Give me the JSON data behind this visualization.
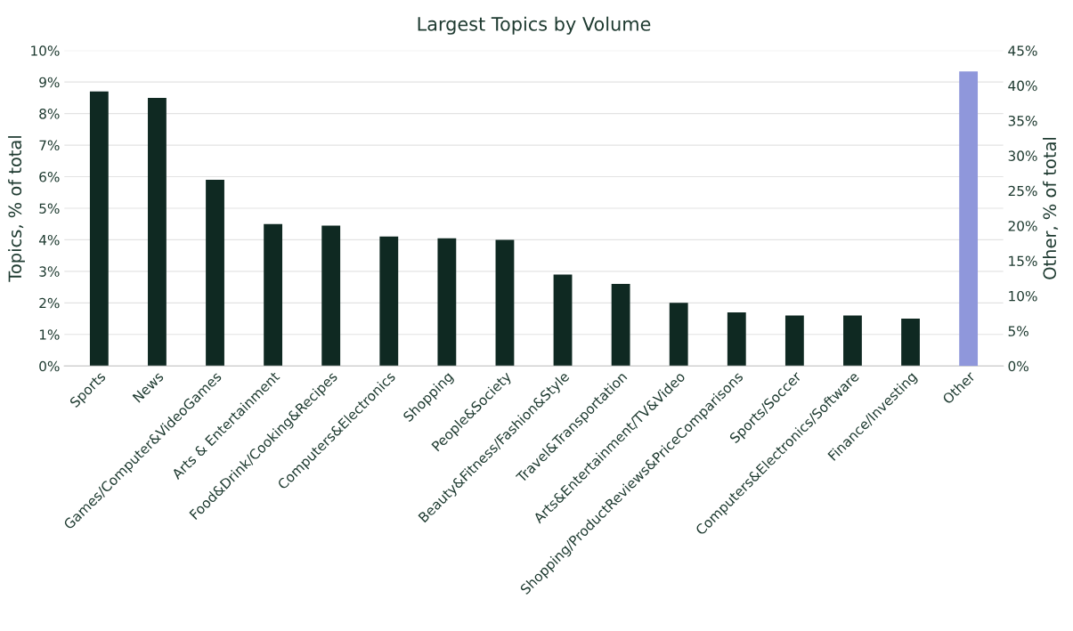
{
  "chart_data": {
    "type": "bar",
    "title": "Largest Topics by Volume",
    "ylabel": "Topics, % of total",
    "y2label": "Other, % of total",
    "categories": [
      "Sports",
      "News",
      "Games/Computer&VideoGames",
      "Arts & Entertainment",
      "Food&Drink/Cooking&Recipes",
      "Computers&Electronics",
      "Shopping",
      "People&Society",
      "Beauty&Fitness/Fashion&Style",
      "Travel&Transportation",
      "Arts&Entertainment/TV&Video",
      "Shopping/ProductReviews&PriceComparisons",
      "Sports/Soccer",
      "Computers&Electronics/Software",
      "Finance/Investing",
      "Other"
    ],
    "series": [
      {
        "color": "#0f2922",
        "values": [
          8.7,
          8.5,
          5.9,
          4.5,
          4.45,
          4.1,
          4.05,
          4.0,
          2.9,
          2.6,
          2.0,
          1.7,
          1.6,
          1.6,
          1.5,
          null
        ]
      },
      {
        "color": "#8f97db",
        "axis": "y2",
        "values": [
          null,
          null,
          null,
          null,
          null,
          null,
          null,
          null,
          null,
          null,
          null,
          null,
          null,
          null,
          null,
          42
        ]
      }
    ],
    "ylim": [
      0,
      10
    ],
    "yticks": [
      {
        "value": 0,
        "label": "0%"
      },
      {
        "value": 1,
        "label": "1%"
      },
      {
        "value": 2,
        "label": "2%"
      },
      {
        "value": 3,
        "label": "3%"
      },
      {
        "value": 4,
        "label": "4%"
      },
      {
        "value": 5,
        "label": "5%"
      },
      {
        "value": 6,
        "label": "6%"
      },
      {
        "value": 7,
        "label": "7%"
      },
      {
        "value": 8,
        "label": "8%"
      },
      {
        "value": 9,
        "label": "9%"
      },
      {
        "value": 10,
        "label": "10%"
      }
    ],
    "y2lim": [
      0,
      45
    ],
    "y2ticks": [
      {
        "value": 0,
        "label": "0%"
      },
      {
        "value": 5,
        "label": "5%"
      },
      {
        "value": 10,
        "label": "10%"
      },
      {
        "value": 15,
        "label": "15%"
      },
      {
        "value": 20,
        "label": "20%"
      },
      {
        "value": 25,
        "label": "25%"
      },
      {
        "value": 30,
        "label": "30%"
      },
      {
        "value": 35,
        "label": "35%"
      },
      {
        "value": 40,
        "label": "40%"
      },
      {
        "value": 45,
        "label": "45%"
      }
    ],
    "grid": "y",
    "legend": false
  }
}
